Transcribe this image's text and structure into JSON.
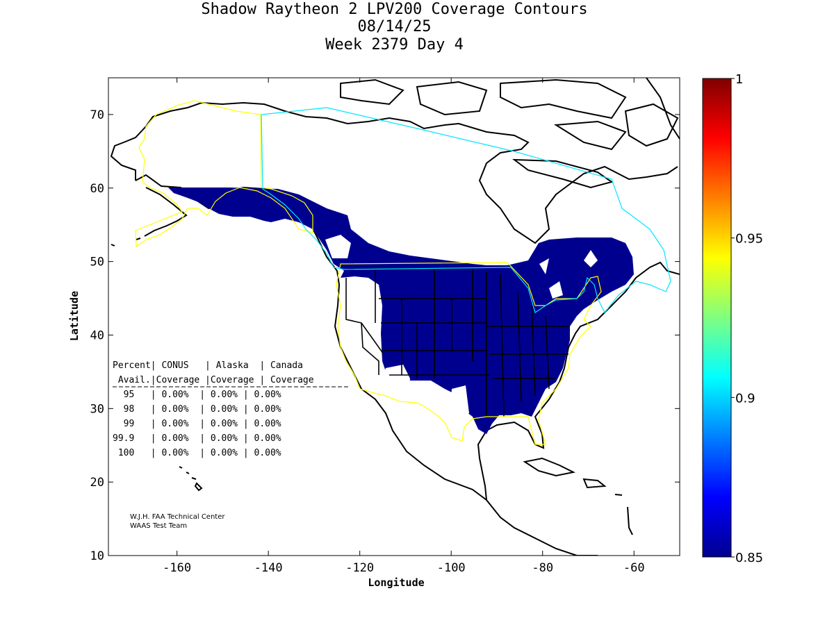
{
  "title": {
    "line1": "Shadow Raytheon 2 LPV200 Coverage Contours",
    "line2": "08/14/25",
    "line3": "Week 2379 Day 4"
  },
  "axes": {
    "xlabel": "Longitude",
    "ylabel": "Latitude",
    "xlim": [
      -175,
      -50
    ],
    "ylim": [
      10,
      75
    ],
    "xticks": [
      -160,
      -140,
      -120,
      -100,
      -80,
      -60
    ],
    "yticks": [
      10,
      20,
      30,
      40,
      50,
      60,
      70
    ],
    "xtick_labels": [
      "-160",
      "-140",
      "-120",
      "-100",
      "-80",
      "-60"
    ],
    "ytick_labels": [
      "10",
      "20",
      "30",
      "40",
      "50",
      "60",
      "70"
    ]
  },
  "colorbar": {
    "min": 0.85,
    "max": 1,
    "colormap": "jet",
    "ticks": [
      0.85,
      0.9,
      0.95,
      1
    ],
    "tick_labels": [
      "0.85",
      "0.9",
      "0.95",
      "1"
    ]
  },
  "coverage_table": {
    "header1": "Percent| CONUS   | Alaska  | Canada",
    "header2": " Avail.|Coverage |Coverage | Coverage",
    "rows": [
      "  95   | 0.00%  | 0.00% | 0.00%",
      "  98   | 0.00%  | 0.00% | 0.00%",
      "  99   | 0.00%  | 0.00% | 0.00%",
      "99.9   | 0.00%  | 0.00% | 0.00%",
      " 100   | 0.00%  | 0.00% | 0.00%"
    ]
  },
  "credit": {
    "line1": "W.J.H. FAA Technical Center",
    "line2": "WAAS Test Team"
  },
  "colors": {
    "coverage_fill": "#00008f",
    "conus_boundary": "#ffff00",
    "canada_boundary": "#00e5ff",
    "coastline": "#000000"
  },
  "chart_data": {
    "type": "heatmap",
    "title": "Shadow Raytheon 2 LPV200 Coverage Contours",
    "xlabel": "Longitude",
    "ylabel": "Latitude",
    "xlim": [
      -175,
      -50
    ],
    "ylim": [
      10,
      75
    ],
    "value_range": [
      0.85,
      1
    ],
    "coverage_value_shown": 0.85,
    "regions": [
      "CONUS",
      "Alaska",
      "Canada"
    ],
    "coverage_percent": {
      "95": {
        "CONUS": "0.00%",
        "Alaska": "0.00%",
        "Canada": "0.00%"
      },
      "98": {
        "CONUS": "0.00%",
        "Alaska": "0.00%",
        "Canada": "0.00%"
      },
      "99": {
        "CONUS": "0.00%",
        "Alaska": "0.00%",
        "Canada": "0.00%"
      },
      "99.9": {
        "CONUS": "0.00%",
        "Alaska": "0.00%",
        "Canada": "0.00%"
      },
      "100": {
        "CONUS": "0.00%",
        "Alaska": "0.00%",
        "Canada": "0.00%"
      }
    }
  }
}
